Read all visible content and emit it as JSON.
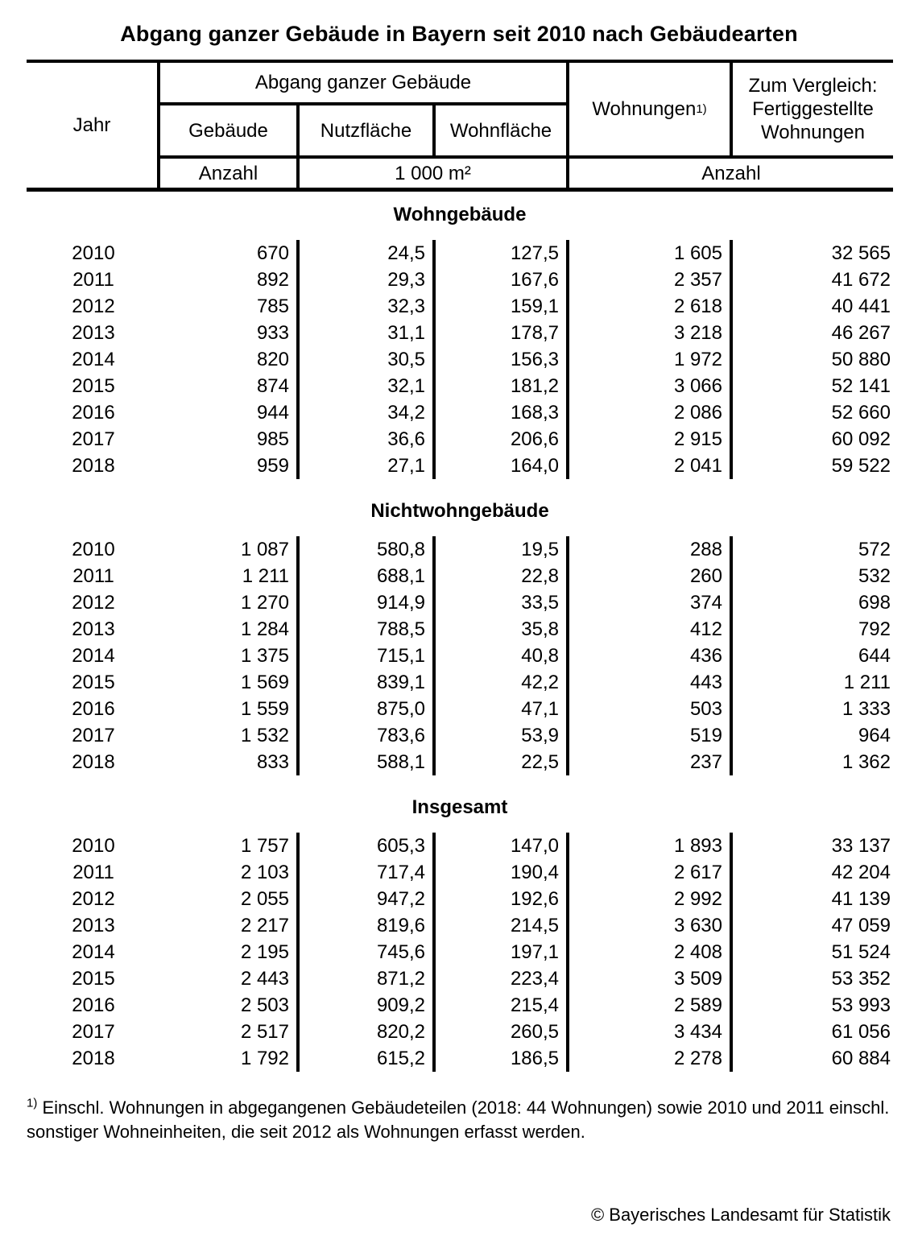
{
  "title": "Abgang ganzer Gebäude in Bayern seit 2010 nach Gebäudearten",
  "header": {
    "jahr": "Jahr",
    "group_abgang": "Abgang ganzer Gebäude",
    "col_gebaeude": "Gebäude",
    "col_nutzflaeche": "Nutzfläche",
    "col_wohnflaeche": "Wohnfläche",
    "col_wohnungen": "Wohnungen",
    "footnote_marker": "1)",
    "col_vergleich": "Zum Vergleich: Fertiggestellte Wohnungen",
    "unit_anzahl": "Anzahl",
    "unit_qm": "1 000 m²",
    "unit_anzahl2": "Anzahl"
  },
  "sections": [
    {
      "label": "Wohngebäude",
      "rows": [
        {
          "year": "2010",
          "gebaeude": "670",
          "nutzflaeche": "24,5",
          "wohnflaeche": "127,5",
          "wohnungen": "1 605",
          "fertiggestellte": "32 565"
        },
        {
          "year": "2011",
          "gebaeude": "892",
          "nutzflaeche": "29,3",
          "wohnflaeche": "167,6",
          "wohnungen": "2 357",
          "fertiggestellte": "41 672"
        },
        {
          "year": "2012",
          "gebaeude": "785",
          "nutzflaeche": "32,3",
          "wohnflaeche": "159,1",
          "wohnungen": "2 618",
          "fertiggestellte": "40 441"
        },
        {
          "year": "2013",
          "gebaeude": "933",
          "nutzflaeche": "31,1",
          "wohnflaeche": "178,7",
          "wohnungen": "3 218",
          "fertiggestellte": "46 267"
        },
        {
          "year": "2014",
          "gebaeude": "820",
          "nutzflaeche": "30,5",
          "wohnflaeche": "156,3",
          "wohnungen": "1 972",
          "fertiggestellte": "50 880"
        },
        {
          "year": "2015",
          "gebaeude": "874",
          "nutzflaeche": "32,1",
          "wohnflaeche": "181,2",
          "wohnungen": "3 066",
          "fertiggestellte": "52 141"
        },
        {
          "year": "2016",
          "gebaeude": "944",
          "nutzflaeche": "34,2",
          "wohnflaeche": "168,3",
          "wohnungen": "2 086",
          "fertiggestellte": "52 660"
        },
        {
          "year": "2017",
          "gebaeude": "985",
          "nutzflaeche": "36,6",
          "wohnflaeche": "206,6",
          "wohnungen": "2 915",
          "fertiggestellte": "60 092"
        },
        {
          "year": "2018",
          "gebaeude": "959",
          "nutzflaeche": "27,1",
          "wohnflaeche": "164,0",
          "wohnungen": "2 041",
          "fertiggestellte": "59 522"
        }
      ]
    },
    {
      "label": "Nichtwohngebäude",
      "rows": [
        {
          "year": "2010",
          "gebaeude": "1 087",
          "nutzflaeche": "580,8",
          "wohnflaeche": "19,5",
          "wohnungen": "288",
          "fertiggestellte": "572"
        },
        {
          "year": "2011",
          "gebaeude": "1 211",
          "nutzflaeche": "688,1",
          "wohnflaeche": "22,8",
          "wohnungen": "260",
          "fertiggestellte": "532"
        },
        {
          "year": "2012",
          "gebaeude": "1 270",
          "nutzflaeche": "914,9",
          "wohnflaeche": "33,5",
          "wohnungen": "374",
          "fertiggestellte": "698"
        },
        {
          "year": "2013",
          "gebaeude": "1 284",
          "nutzflaeche": "788,5",
          "wohnflaeche": "35,8",
          "wohnungen": "412",
          "fertiggestellte": "792"
        },
        {
          "year": "2014",
          "gebaeude": "1 375",
          "nutzflaeche": "715,1",
          "wohnflaeche": "40,8",
          "wohnungen": "436",
          "fertiggestellte": "644"
        },
        {
          "year": "2015",
          "gebaeude": "1 569",
          "nutzflaeche": "839,1",
          "wohnflaeche": "42,2",
          "wohnungen": "443",
          "fertiggestellte": "1 211"
        },
        {
          "year": "2016",
          "gebaeude": "1 559",
          "nutzflaeche": "875,0",
          "wohnflaeche": "47,1",
          "wohnungen": "503",
          "fertiggestellte": "1 333"
        },
        {
          "year": "2017",
          "gebaeude": "1 532",
          "nutzflaeche": "783,6",
          "wohnflaeche": "53,9",
          "wohnungen": "519",
          "fertiggestellte": "964"
        },
        {
          "year": "2018",
          "gebaeude": "833",
          "nutzflaeche": "588,1",
          "wohnflaeche": "22,5",
          "wohnungen": "237",
          "fertiggestellte": "1 362"
        }
      ]
    },
    {
      "label": "Insgesamt",
      "rows": [
        {
          "year": "2010",
          "gebaeude": "1 757",
          "nutzflaeche": "605,3",
          "wohnflaeche": "147,0",
          "wohnungen": "1 893",
          "fertiggestellte": "33 137"
        },
        {
          "year": "2011",
          "gebaeude": "2 103",
          "nutzflaeche": "717,4",
          "wohnflaeche": "190,4",
          "wohnungen": "2 617",
          "fertiggestellte": "42 204"
        },
        {
          "year": "2012",
          "gebaeude": "2 055",
          "nutzflaeche": "947,2",
          "wohnflaeche": "192,6",
          "wohnungen": "2 992",
          "fertiggestellte": "41 139"
        },
        {
          "year": "2013",
          "gebaeude": "2 217",
          "nutzflaeche": "819,6",
          "wohnflaeche": "214,5",
          "wohnungen": "3 630",
          "fertiggestellte": "47 059"
        },
        {
          "year": "2014",
          "gebaeude": "2 195",
          "nutzflaeche": "745,6",
          "wohnflaeche": "197,1",
          "wohnungen": "2 408",
          "fertiggestellte": "51 524"
        },
        {
          "year": "2015",
          "gebaeude": "2 443",
          "nutzflaeche": "871,2",
          "wohnflaeche": "223,4",
          "wohnungen": "3 509",
          "fertiggestellte": "53 352"
        },
        {
          "year": "2016",
          "gebaeude": "2 503",
          "nutzflaeche": "909,2",
          "wohnflaeche": "215,4",
          "wohnungen": "2 589",
          "fertiggestellte": "53 993"
        },
        {
          "year": "2017",
          "gebaeude": "2 517",
          "nutzflaeche": "820,2",
          "wohnflaeche": "260,5",
          "wohnungen": "3 434",
          "fertiggestellte": "61 056"
        },
        {
          "year": "2018",
          "gebaeude": "1 792",
          "nutzflaeche": "615,2",
          "wohnflaeche": "186,5",
          "wohnungen": "2 278",
          "fertiggestellte": "60 884"
        }
      ]
    }
  ],
  "footnote": {
    "marker": "1)",
    "text": " Einschl. Wohnungen in abgegangenen Gebäudeteilen (2018: 44 Wohnungen) sowie 2010 und 2011 einschl. sonstiger Wohneinheiten, die seit 2012 als Wohnungen erfasst werden."
  },
  "copyright": "© Bayerisches Landesamt für Statistik"
}
